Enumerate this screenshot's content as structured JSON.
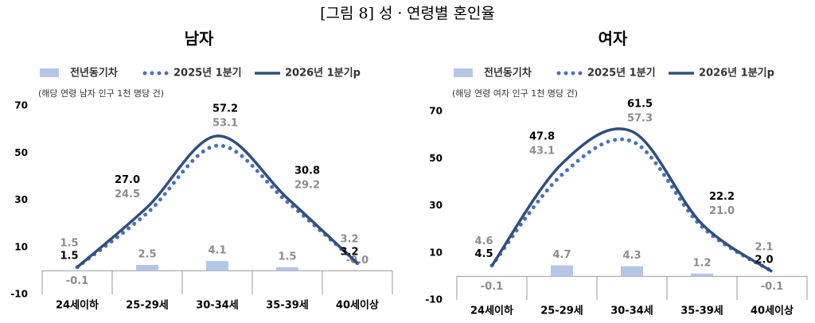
{
  "title": "[그림 8] 성ㆍ연령별 혼인율",
  "chart_data": [
    {
      "type": "combo",
      "title": "남자",
      "subtitle": "(해당 연령 남자 인구 1천 명당 건)",
      "categories": [
        "24세이하",
        "25-29세",
        "30-34세",
        "35-39세",
        "40세이상"
      ],
      "ylim": [
        -10,
        70
      ],
      "yticks": [
        -10,
        10,
        30,
        50,
        70
      ],
      "series": [
        {
          "name": "전년동기차",
          "kind": "bar",
          "color": "#b4c6e7",
          "values": [
            -0.1,
            2.5,
            4.1,
            1.5,
            -0.0
          ],
          "value_labels": [
            "-0.1",
            "2.5",
            "4.1",
            "1.5",
            "-0.0"
          ]
        },
        {
          "name": "2025년 1분기",
          "kind": "dotted",
          "color": "#4a72b8",
          "values": [
            1.5,
            24.5,
            53.1,
            29.2,
            3.2
          ],
          "value_labels": [
            "1.5",
            "24.5",
            "53.1",
            "29.2",
            "3.2"
          ]
        },
        {
          "name": "2026년 1분기p",
          "kind": "line",
          "color": "#2f4f7f",
          "values": [
            1.5,
            27.0,
            57.2,
            30.8,
            3.2
          ],
          "value_labels": [
            "1.5",
            "27.0",
            "57.2",
            "30.8",
            "3.2"
          ]
        }
      ]
    },
    {
      "type": "combo",
      "title": "여자",
      "subtitle": "(해당 연령 여자 인구 1천 명당 건)",
      "categories": [
        "24세이하",
        "25-29세",
        "30-34세",
        "35-39세",
        "40세이상"
      ],
      "ylim": [
        -10,
        70
      ],
      "yticks": [
        -10,
        10,
        30,
        50,
        70
      ],
      "series": [
        {
          "name": "전년동기차",
          "kind": "bar",
          "color": "#b4c6e7",
          "values": [
            -0.1,
            4.7,
            4.3,
            1.2,
            -0.1
          ],
          "value_labels": [
            "-0.1",
            "4.7",
            "4.3",
            "1.2",
            "-0.1"
          ]
        },
        {
          "name": "2025년 1분기",
          "kind": "dotted",
          "color": "#4a72b8",
          "values": [
            4.6,
            43.1,
            57.3,
            21.0,
            2.1
          ],
          "value_labels": [
            "4.6",
            "43.1",
            "57.3",
            "21.0",
            "2.1"
          ]
        },
        {
          "name": "2026년 1분기p",
          "kind": "line",
          "color": "#2f4f7f",
          "values": [
            4.5,
            47.8,
            61.5,
            22.2,
            2.0
          ],
          "value_labels": [
            "4.5",
            "47.8",
            "61.5",
            "22.2",
            "2.0"
          ]
        }
      ]
    }
  ]
}
